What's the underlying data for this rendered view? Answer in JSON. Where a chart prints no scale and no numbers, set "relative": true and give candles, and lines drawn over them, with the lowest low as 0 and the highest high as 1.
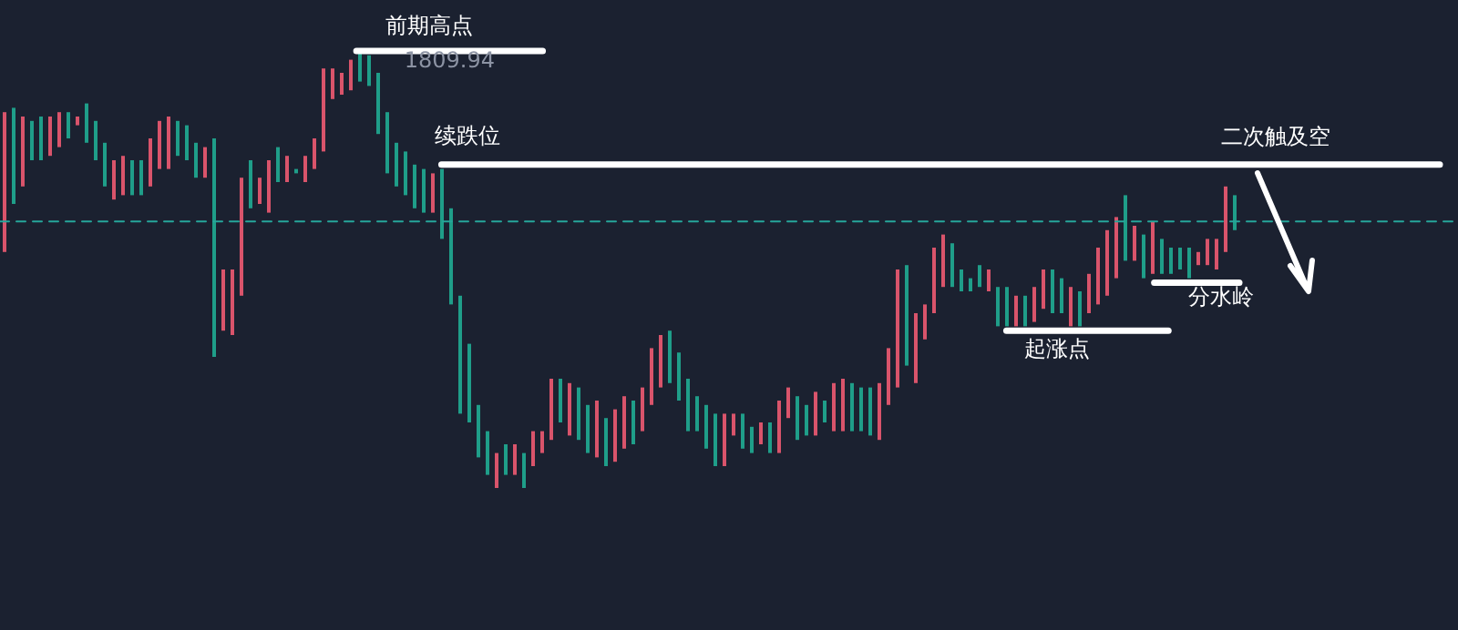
{
  "chart_data": {
    "type": "candlestick",
    "relative": true,
    "categories": [
      null,
      null,
      null,
      null,
      null,
      null,
      null,
      null,
      null,
      null,
      null,
      null,
      null,
      null,
      null,
      null,
      null,
      null,
      null,
      null,
      null,
      null,
      null,
      null,
      null,
      null,
      null,
      null,
      null,
      null,
      null,
      null,
      null,
      null,
      null,
      null,
      null,
      null,
      null,
      null,
      null,
      null,
      null,
      null,
      null,
      null,
      null,
      null,
      null,
      null,
      null,
      null,
      null,
      null,
      null,
      null,
      null,
      null,
      null,
      null,
      null,
      null,
      null,
      null,
      null,
      null,
      null,
      null,
      null,
      null,
      null,
      null,
      null,
      null,
      null,
      null,
      null,
      null,
      null,
      null,
      null,
      null,
      null,
      null,
      null,
      null,
      null,
      null,
      null,
      null,
      null,
      null,
      null,
      null,
      null,
      null,
      null,
      null,
      null,
      null,
      null,
      null,
      null,
      null,
      null,
      null,
      null,
      null,
      null,
      null,
      null,
      null,
      null,
      null,
      null,
      null,
      null,
      null,
      null,
      null,
      null,
      null,
      null,
      null,
      null,
      null,
      null,
      null,
      null,
      null,
      null,
      null,
      null,
      null,
      null,
      null
    ],
    "ohlc": [
      [
        0.54,
        0.86,
        0.54,
        0.86
      ],
      [
        0.87,
        0.87,
        0.65,
        0.65
      ],
      [
        0.69,
        0.85,
        0.69,
        0.85
      ],
      [
        0.84,
        0.84,
        0.75,
        0.75
      ],
      [
        0.85,
        0.85,
        0.75,
        0.75
      ],
      [
        0.76,
        0.85,
        0.76,
        0.85
      ],
      [
        0.78,
        0.86,
        0.78,
        0.86
      ],
      [
        0.86,
        0.86,
        0.8,
        0.8
      ],
      [
        0.83,
        0.85,
        0.83,
        0.85
      ],
      [
        0.88,
        0.88,
        0.79,
        0.79
      ],
      [
        0.84,
        0.84,
        0.75,
        0.75
      ],
      [
        0.79,
        0.79,
        0.69,
        0.69
      ],
      [
        0.66,
        0.75,
        0.66,
        0.75
      ],
      [
        0.67,
        0.76,
        0.67,
        0.76
      ],
      [
        0.75,
        0.75,
        0.67,
        0.67
      ],
      [
        0.75,
        0.75,
        0.67,
        0.67
      ],
      [
        0.69,
        0.8,
        0.69,
        0.8
      ],
      [
        0.73,
        0.84,
        0.73,
        0.84
      ],
      [
        0.73,
        0.85,
        0.73,
        0.85
      ],
      [
        0.84,
        0.84,
        0.76,
        0.76
      ],
      [
        0.83,
        0.83,
        0.75,
        0.75
      ],
      [
        0.79,
        0.79,
        0.71,
        0.71
      ],
      [
        0.71,
        0.78,
        0.71,
        0.78
      ],
      [
        0.8,
        0.8,
        0.3,
        0.3
      ],
      [
        0.36,
        0.5,
        0.36,
        0.5
      ],
      [
        0.35,
        0.5,
        0.35,
        0.5
      ],
      [
        0.44,
        0.71,
        0.44,
        0.71
      ],
      [
        0.75,
        0.75,
        0.64,
        0.64
      ],
      [
        0.65,
        0.71,
        0.65,
        0.71
      ],
      [
        0.63,
        0.75,
        0.63,
        0.75
      ],
      [
        0.78,
        0.78,
        0.7,
        0.7
      ],
      [
        0.7,
        0.76,
        0.7,
        0.76
      ],
      [
        0.73,
        0.73,
        0.72,
        0.72
      ],
      [
        0.7,
        0.76,
        0.7,
        0.76
      ],
      [
        0.73,
        0.8,
        0.73,
        0.8
      ],
      [
        0.77,
        0.96,
        0.77,
        0.96
      ],
      [
        0.89,
        0.96,
        0.89,
        0.96
      ],
      [
        0.9,
        0.95,
        0.9,
        0.95
      ],
      [
        0.91,
        0.98,
        0.91,
        0.98
      ],
      [
        1.0,
        1.0,
        0.93,
        0.93
      ],
      [
        0.99,
        0.99,
        0.92,
        0.92
      ],
      [
        0.95,
        0.95,
        0.81,
        0.81
      ],
      [
        0.86,
        0.86,
        0.72,
        0.72
      ],
      [
        0.79,
        0.79,
        0.69,
        0.69
      ],
      [
        0.77,
        0.77,
        0.67,
        0.67
      ],
      [
        0.74,
        0.74,
        0.64,
        0.64
      ],
      [
        0.73,
        0.73,
        0.63,
        0.63
      ],
      [
        0.63,
        0.72,
        0.63,
        0.72
      ],
      [
        0.73,
        0.73,
        0.57,
        0.57
      ],
      [
        0.64,
        0.64,
        0.42,
        0.42
      ],
      [
        0.44,
        0.44,
        0.17,
        0.17
      ],
      [
        0.33,
        0.33,
        0.15,
        0.15
      ],
      [
        0.19,
        0.19,
        0.07,
        0.07
      ],
      [
        0.13,
        0.13,
        0.03,
        0.03
      ],
      [
        0.0,
        0.08,
        0.0,
        0.08
      ],
      [
        0.1,
        0.1,
        0.03,
        0.03
      ],
      [
        0.03,
        0.1,
        0.03,
        0.1
      ],
      [
        0.08,
        0.08,
        0.0,
        0.0
      ],
      [
        0.05,
        0.13,
        0.05,
        0.13
      ],
      [
        0.08,
        0.13,
        0.08,
        0.13
      ],
      [
        0.11,
        0.25,
        0.11,
        0.25
      ],
      [
        0.25,
        0.25,
        0.15,
        0.15
      ],
      [
        0.12,
        0.24,
        0.12,
        0.24
      ],
      [
        0.23,
        0.23,
        0.11,
        0.11
      ],
      [
        0.19,
        0.19,
        0.08,
        0.08
      ],
      [
        0.07,
        0.2,
        0.07,
        0.2
      ],
      [
        0.16,
        0.16,
        0.05,
        0.05
      ],
      [
        0.06,
        0.18,
        0.06,
        0.18
      ],
      [
        0.09,
        0.21,
        0.09,
        0.21
      ],
      [
        0.2,
        0.2,
        0.1,
        0.1
      ],
      [
        0.13,
        0.23,
        0.13,
        0.23
      ],
      [
        0.19,
        0.32,
        0.19,
        0.32
      ],
      [
        0.23,
        0.35,
        0.23,
        0.35
      ],
      [
        0.36,
        0.36,
        0.24,
        0.24
      ],
      [
        0.31,
        0.31,
        0.2,
        0.2
      ],
      [
        0.25,
        0.25,
        0.13,
        0.13
      ],
      [
        0.21,
        0.21,
        0.13,
        0.13
      ],
      [
        0.19,
        0.19,
        0.09,
        0.09
      ],
      [
        0.17,
        0.17,
        0.05,
        0.05
      ],
      [
        0.05,
        0.17,
        0.05,
        0.17
      ],
      [
        0.12,
        0.17,
        0.12,
        0.17
      ],
      [
        0.17,
        0.17,
        0.09,
        0.09
      ],
      [
        0.14,
        0.14,
        0.08,
        0.08
      ],
      [
        0.1,
        0.15,
        0.1,
        0.15
      ],
      [
        0.15,
        0.15,
        0.08,
        0.08
      ],
      [
        0.08,
        0.2,
        0.08,
        0.2
      ],
      [
        0.16,
        0.23,
        0.16,
        0.23
      ],
      [
        0.21,
        0.21,
        0.11,
        0.11
      ],
      [
        0.19,
        0.19,
        0.12,
        0.12
      ],
      [
        0.12,
        0.22,
        0.12,
        0.22
      ],
      [
        0.2,
        0.2,
        0.15,
        0.15
      ],
      [
        0.13,
        0.24,
        0.13,
        0.24
      ],
      [
        0.13,
        0.25,
        0.13,
        0.25
      ],
      [
        0.24,
        0.24,
        0.13,
        0.13
      ],
      [
        0.23,
        0.23,
        0.13,
        0.13
      ],
      [
        0.23,
        0.23,
        0.12,
        0.12
      ],
      [
        0.11,
        0.24,
        0.11,
        0.24
      ],
      [
        0.19,
        0.32,
        0.19,
        0.32
      ],
      [
        0.23,
        0.5,
        0.23,
        0.5
      ],
      [
        0.51,
        0.51,
        0.28,
        0.28
      ],
      [
        0.24,
        0.4,
        0.24,
        0.4
      ],
      [
        0.34,
        0.42,
        0.34,
        0.42
      ],
      [
        0.4,
        0.55,
        0.4,
        0.55
      ],
      [
        0.46,
        0.58,
        0.46,
        0.58
      ],
      [
        0.56,
        0.56,
        0.46,
        0.46
      ],
      [
        0.5,
        0.5,
        0.45,
        0.45
      ],
      [
        0.48,
        0.48,
        0.45,
        0.45
      ],
      [
        0.51,
        0.51,
        0.46,
        0.46
      ],
      [
        0.45,
        0.5,
        0.45,
        0.5
      ],
      [
        0.46,
        0.46,
        0.37,
        0.37
      ],
      [
        0.46,
        0.46,
        0.37,
        0.37
      ],
      [
        0.37,
        0.44,
        0.37,
        0.44
      ],
      [
        0.44,
        0.44,
        0.37,
        0.37
      ],
      [
        0.38,
        0.46,
        0.38,
        0.46
      ],
      [
        0.41,
        0.5,
        0.41,
        0.5
      ],
      [
        0.5,
        0.5,
        0.4,
        0.4
      ],
      [
        0.48,
        0.48,
        0.4,
        0.4
      ],
      [
        0.37,
        0.46,
        0.37,
        0.46
      ],
      [
        0.45,
        0.45,
        0.37,
        0.37
      ],
      [
        0.4,
        0.49,
        0.4,
        0.49
      ],
      [
        0.42,
        0.55,
        0.42,
        0.55
      ],
      [
        0.44,
        0.59,
        0.44,
        0.59
      ],
      [
        0.48,
        0.62,
        0.48,
        0.62
      ],
      [
        0.67,
        0.67,
        0.52,
        0.52
      ],
      [
        0.52,
        0.6,
        0.52,
        0.6
      ],
      [
        0.58,
        0.58,
        0.48,
        0.48
      ],
      [
        0.49,
        0.61,
        0.49,
        0.61
      ],
      [
        0.57,
        0.57,
        0.49,
        0.49
      ],
      [
        0.55,
        0.55,
        0.49,
        0.49
      ],
      [
        0.55,
        0.55,
        0.5,
        0.5
      ],
      [
        0.55,
        0.55,
        0.48,
        0.48
      ],
      [
        0.51,
        0.54,
        0.51,
        0.54
      ],
      [
        0.51,
        0.57,
        0.51,
        0.57
      ],
      [
        0.5,
        0.57,
        0.5,
        0.57
      ],
      [
        0.54,
        0.69,
        0.54,
        0.69
      ],
      [
        0.67,
        0.67,
        0.59,
        0.59
      ]
    ],
    "colors": [
      "#d9546b",
      "#1f9e89",
      "#d9546b",
      "#1f9e89",
      "#1f9e89",
      "#d9546b",
      "#d9546b",
      "#1f9e89",
      "#d9546b",
      "#1f9e89",
      "#1f9e89",
      "#1f9e89",
      "#d9546b",
      "#d9546b",
      "#1f9e89",
      "#1f9e89",
      "#d9546b",
      "#d9546b",
      "#d9546b",
      "#1f9e89",
      "#1f9e89",
      "#1f9e89",
      "#d9546b",
      "#1f9e89",
      "#d9546b",
      "#d9546b",
      "#d9546b",
      "#1f9e89",
      "#d9546b",
      "#d9546b",
      "#1f9e89",
      "#d9546b",
      "#1f9e89",
      "#d9546b",
      "#d9546b",
      "#d9546b",
      "#d9546b",
      "#d9546b",
      "#d9546b",
      "#1f9e89",
      "#1f9e89",
      "#1f9e89",
      "#1f9e89",
      "#1f9e89",
      "#1f9e89",
      "#1f9e89",
      "#1f9e89",
      "#d9546b",
      "#1f9e89",
      "#1f9e89",
      "#1f9e89",
      "#1f9e89",
      "#1f9e89",
      "#1f9e89",
      "#d9546b",
      "#1f9e89",
      "#d9546b",
      "#1f9e89",
      "#d9546b",
      "#d9546b",
      "#d9546b",
      "#1f9e89",
      "#d9546b",
      "#1f9e89",
      "#1f9e89",
      "#d9546b",
      "#1f9e89",
      "#d9546b",
      "#d9546b",
      "#1f9e89",
      "#d9546b",
      "#d9546b",
      "#d9546b",
      "#1f9e89",
      "#1f9e89",
      "#1f9e89",
      "#1f9e89",
      "#1f9e89",
      "#1f9e89",
      "#d9546b",
      "#d9546b",
      "#1f9e89",
      "#1f9e89",
      "#d9546b",
      "#1f9e89",
      "#d9546b",
      "#d9546b",
      "#1f9e89",
      "#1f9e89",
      "#d9546b",
      "#1f9e89",
      "#d9546b",
      "#d9546b",
      "#1f9e89",
      "#1f9e89",
      "#1f9e89",
      "#d9546b",
      "#d9546b",
      "#d9546b",
      "#1f9e89",
      "#d9546b",
      "#d9546b",
      "#d9546b",
      "#d9546b",
      "#1f9e89",
      "#1f9e89",
      "#1f9e89",
      "#1f9e89",
      "#d9546b",
      "#1f9e89",
      "#1f9e89",
      "#d9546b",
      "#1f9e89",
      "#d9546b",
      "#d9546b",
      "#1f9e89",
      "#1f9e89",
      "#d9546b",
      "#1f9e89",
      "#d9546b",
      "#d9546b",
      "#d9546b",
      "#d9546b",
      "#1f9e89",
      "#d9546b",
      "#1f9e89",
      "#d9546b",
      "#1f9e89",
      "#1f9e89",
      "#1f9e89",
      "#1f9e89",
      "#d9546b",
      "#d9546b",
      "#d9546b",
      "#d9546b",
      "#1f9e89"
    ],
    "ref_lines": [
      {
        "axis": "y",
        "value": 1.0,
        "label": "前期高点",
        "color": "#ffffff"
      },
      {
        "axis": "y",
        "value": 0.74,
        "label": "续跌位",
        "color": "#ffffff"
      },
      {
        "axis": "y",
        "value": 0.36,
        "label": "起涨点",
        "color": "#ffffff"
      },
      {
        "axis": "y",
        "value": 0.47,
        "label": "分水岭",
        "color": "#ffffff"
      },
      {
        "axis": "y",
        "value": 0.61,
        "color": "#26a69a",
        "line_style": "dashed"
      }
    ],
    "annotations": [
      "1809.94",
      "二次触及空"
    ]
  }
}
